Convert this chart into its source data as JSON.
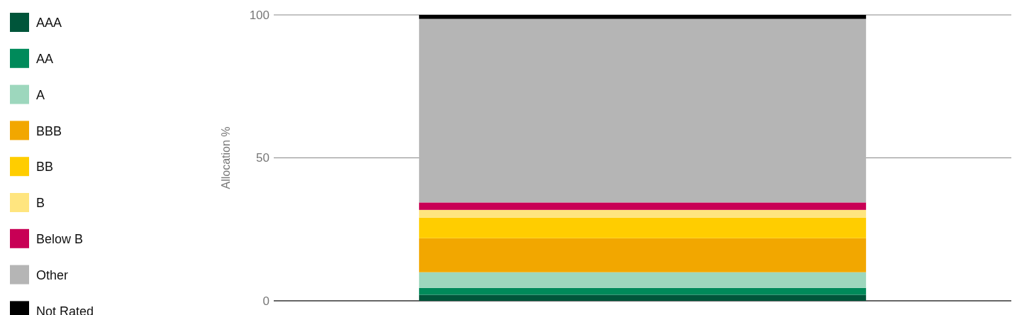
{
  "chart_data": {
    "type": "bar",
    "stacked": true,
    "ylabel": "Allocation %",
    "categories": [
      null
    ],
    "ylim": [
      0,
      100
    ],
    "yticks": [
      0,
      50,
      100
    ],
    "grid": "y",
    "legend": "left",
    "series": [
      {
        "name": "AAA",
        "color": "#00553a",
        "values": [
          2.1
        ]
      },
      {
        "name": "AA",
        "color": "#008a5a",
        "values": [
          2.4
        ]
      },
      {
        "name": "A",
        "color": "#9dd7bd",
        "values": [
          5.5
        ]
      },
      {
        "name": "BBB",
        "color": "#f2a700",
        "values": [
          11.9
        ]
      },
      {
        "name": "BB",
        "color": "#ffcd00",
        "values": [
          7.2
        ]
      },
      {
        "name": "B",
        "color": "#ffe57f",
        "values": [
          2.7
        ]
      },
      {
        "name": "Below B",
        "color": "#c80055",
        "values": [
          2.6
        ]
      },
      {
        "name": "Other",
        "color": "#b5b5b5",
        "values": [
          64.2
        ]
      },
      {
        "name": "Not Rated",
        "color": "#000000",
        "values": [
          1.4
        ]
      }
    ]
  }
}
